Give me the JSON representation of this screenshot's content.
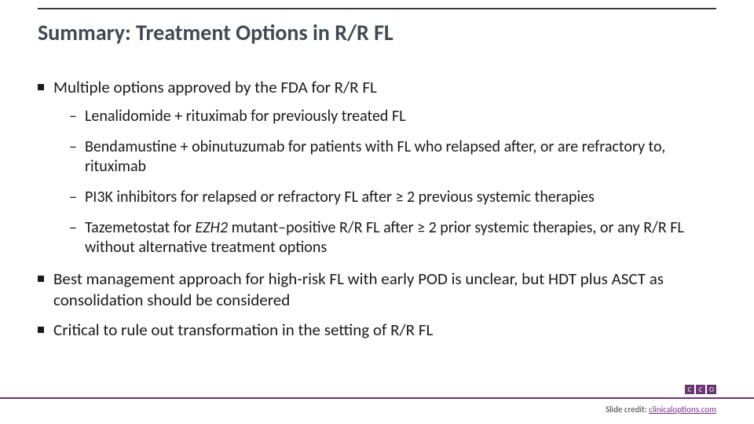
{
  "title": "Summary: Treatment Options in R/R FL",
  "bullets": {
    "b1": "Multiple options approved by the FDA for R/R FL",
    "b1_1": "Lenalidomide + rituximab for previously treated FL",
    "b1_2": "Bendamustine + obinutuzumab for patients with FL who relapsed after, or are refractory to, rituximab",
    "b1_3": "PI3K inhibitors for relapsed or refractory FL after ≥ 2 previous systemic therapies",
    "b1_4_a": "Tazemetostat for ",
    "b1_4_i": "EZH2",
    "b1_4_b": " mutant–positive R/R FL after ≥ 2 prior systemic therapies, or any R/R FL without alternative treatment options",
    "b2": "Best management approach for high-risk FL with early POD is unclear, but HDT plus ASCT as consolidation should be considered",
    "b3": "Critical to rule out transformation in the setting of R/R FL"
  },
  "credit": {
    "label": "Slide credit: ",
    "link": "clinicaloptions.com"
  },
  "colors": {
    "title": "#414a52",
    "rule_top": "#3a3a3a",
    "rule_bottom": "#6b3772",
    "link": "#7a2f8a"
  }
}
